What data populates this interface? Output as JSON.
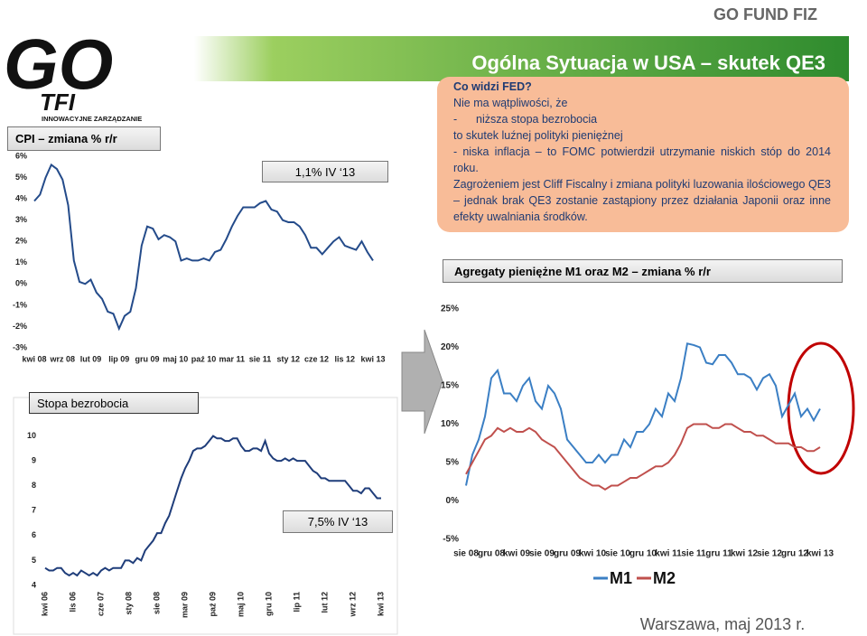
{
  "header": {
    "brand": "GO FUND FIZ",
    "title": "Ogólna Sytuacja w USA – skutek QE3"
  },
  "logo": {
    "brand": "GO",
    "sub": "TFI",
    "tagline": "INNOWACYJNE ZARZĄDZANIE"
  },
  "callout": {
    "heading": "Co widzi FED?",
    "lines": [
      "Nie ma wątpliwości, że",
      "-      niższa stopa bezrobocia",
      "to skutek luźnej polityki pieniężnej",
      "- niska inflacja – to FOMC potwierdził utrzymanie niskich stóp do 2014 roku.",
      "Zagrożeniem jest Cliff Fiscalny i zmiana polityki luzowania ilościowego QE3 – jednak brak QE3 zostanie zastąpiony przez działania Japonii oraz inne efekty uwalniania środków."
    ]
  },
  "footer": "Warszawa, maj 2013 r.",
  "chart_data": [
    {
      "type": "line",
      "title": "CPI – zmiana % r/r",
      "annotation": "1,1%  IV ‘13",
      "color": "#244b8a",
      "categories": [
        "kwi 08",
        null,
        null,
        null,
        null,
        "wrz 08",
        null,
        null,
        null,
        null,
        "lut 09",
        null,
        null,
        null,
        null,
        "lip 09",
        null,
        null,
        null,
        null,
        "gru 09",
        null,
        null,
        null,
        null,
        "maj 10",
        null,
        null,
        null,
        null,
        "paź 10",
        null,
        null,
        null,
        null,
        "mar 11",
        null,
        null,
        null,
        null,
        "sie 11",
        null,
        null,
        null,
        null,
        "sty 12",
        null,
        null,
        null,
        null,
        "cze 12",
        null,
        null,
        null,
        null,
        "lis 12",
        null,
        null,
        null,
        null,
        "kwi 13"
      ],
      "values": [
        3.9,
        4.2,
        5.0,
        5.6,
        5.4,
        4.9,
        3.7,
        1.1,
        0.1,
        0.0,
        0.2,
        -0.4,
        -0.7,
        -1.3,
        -1.4,
        -2.1,
        -1.5,
        -1.3,
        -0.2,
        1.8,
        2.7,
        2.6,
        2.1,
        2.3,
        2.2,
        2.0,
        1.1,
        1.2,
        1.1,
        1.1,
        1.2,
        1.1,
        1.5,
        1.6,
        2.1,
        2.7,
        3.2,
        3.6,
        3.6,
        3.6,
        3.8,
        3.9,
        3.5,
        3.4,
        3.0,
        2.9,
        2.9,
        2.7,
        2.3,
        1.7,
        1.7,
        1.4,
        1.7,
        2.0,
        2.2,
        1.8,
        1.7,
        1.6,
        2.0,
        1.5,
        1.1
      ],
      "ylim": [
        -3,
        6
      ],
      "yticks": [
        {
          "value": -3,
          "label": "-3%"
        },
        {
          "value": -2,
          "label": "-2%"
        },
        {
          "value": -1,
          "label": "-1%"
        },
        {
          "value": 0,
          "label": "0%"
        },
        {
          "value": 1,
          "label": "1%"
        },
        {
          "value": 2,
          "label": "2%"
        },
        {
          "value": 3,
          "label": "3%"
        },
        {
          "value": 4,
          "label": "4%"
        },
        {
          "value": 5,
          "label": "5%"
        },
        {
          "value": 6,
          "label": "6%"
        }
      ],
      "grid": false
    },
    {
      "type": "line",
      "title": "Agregaty pieniężne M1 oraz M2 – zmiana % r/r",
      "categories": [
        "sie 08",
        null,
        null,
        null,
        "gru 08",
        null,
        null,
        null,
        "kwi 09",
        null,
        null,
        null,
        "sie 09",
        null,
        null,
        null,
        "gru 09",
        null,
        null,
        null,
        "kwi 10",
        null,
        null,
        null,
        "sie 10",
        null,
        null,
        null,
        "gru 10",
        null,
        null,
        null,
        "kwi 11",
        null,
        null,
        null,
        "sie 11",
        null,
        null,
        null,
        "gru 11",
        null,
        null,
        null,
        "kwi 12",
        null,
        null,
        null,
        "sie 12",
        null,
        null,
        null,
        "gru 12",
        null,
        null,
        null,
        "kwi 13"
      ],
      "series": [
        {
          "name": "M1",
          "color": "#3b7fc4",
          "values": [
            2,
            6,
            8,
            11,
            16,
            17,
            14,
            14,
            13,
            15,
            16,
            13,
            12,
            15,
            14,
            12,
            8,
            7,
            6,
            5,
            5,
            6,
            5,
            6,
            6,
            8,
            7,
            9,
            9,
            10,
            12,
            11,
            14,
            13,
            16,
            20.5,
            20.3,
            20,
            18,
            17.8,
            19,
            19,
            18,
            16.5,
            16.5,
            16,
            14.5,
            16,
            16.5,
            15,
            11,
            12.5,
            14,
            11,
            12,
            10.5,
            12
          ]
        },
        {
          "name": "M2",
          "color": "#c0504d",
          "values": [
            3.5,
            5,
            6.5,
            8,
            8.5,
            9.5,
            9,
            9.5,
            9,
            9,
            9.5,
            9,
            8,
            7.5,
            7,
            6,
            5,
            4,
            3,
            2.5,
            2,
            2,
            1.5,
            2,
            2,
            2.5,
            3,
            3,
            3.5,
            4,
            4.5,
            4.5,
            5,
            6,
            7.5,
            9.5,
            10,
            10,
            10,
            9.5,
            9.5,
            10,
            10,
            9.5,
            9,
            9,
            8.5,
            8.5,
            8,
            7.5,
            7.5,
            7.5,
            7,
            7,
            6.5,
            6.5,
            7
          ]
        }
      ],
      "ylim": [
        -5,
        25
      ],
      "yticks": [
        {
          "value": -5,
          "label": "-5%"
        },
        {
          "value": 0,
          "label": "0%"
        },
        {
          "value": 5,
          "label": "5%"
        },
        {
          "value": 10,
          "label": "10%"
        },
        {
          "value": 15,
          "label": "15%"
        },
        {
          "value": 20,
          "label": "20%"
        },
        {
          "value": 25,
          "label": "25%"
        }
      ],
      "grid": false,
      "legend": "bottom"
    },
    {
      "type": "line",
      "title": "Stopa bezrobocia",
      "annotation": "7,5%  IV ‘13",
      "color": "#1f3d7a",
      "categories": [
        "kwi 06",
        null,
        null,
        null,
        null,
        null,
        null,
        "lis 06",
        null,
        null,
        null,
        null,
        null,
        null,
        "cze 07",
        null,
        null,
        null,
        null,
        null,
        null,
        "sty 08",
        null,
        null,
        null,
        null,
        null,
        null,
        "sie 08",
        null,
        null,
        null,
        null,
        null,
        null,
        "mar 09",
        null,
        null,
        null,
        null,
        null,
        null,
        "paź 09",
        null,
        null,
        null,
        null,
        null,
        null,
        "maj 10",
        null,
        null,
        null,
        null,
        null,
        null,
        "gru 10",
        null,
        null,
        null,
        null,
        null,
        null,
        "lip 11",
        null,
        null,
        null,
        null,
        null,
        null,
        "lut 12",
        null,
        null,
        null,
        null,
        null,
        null,
        "wrz 12",
        null,
        null,
        null,
        null,
        null,
        null,
        "kwi 13"
      ],
      "values": [
        4.7,
        4.6,
        4.6,
        4.7,
        4.7,
        4.5,
        4.4,
        4.5,
        4.4,
        4.6,
        4.5,
        4.4,
        4.5,
        4.4,
        4.6,
        4.7,
        4.6,
        4.7,
        4.7,
        4.7,
        5.0,
        5.0,
        4.9,
        5.1,
        5.0,
        5.4,
        5.6,
        5.8,
        6.1,
        6.1,
        6.5,
        6.8,
        7.3,
        7.8,
        8.3,
        8.7,
        9.0,
        9.4,
        9.5,
        9.5,
        9.6,
        9.8,
        10.0,
        9.9,
        9.9,
        9.8,
        9.8,
        9.9,
        9.9,
        9.6,
        9.4,
        9.4,
        9.5,
        9.5,
        9.4,
        9.8,
        9.3,
        9.1,
        9.0,
        9.0,
        9.1,
        9.0,
        9.1,
        9.0,
        9.0,
        9.0,
        8.8,
        8.6,
        8.5,
        8.3,
        8.3,
        8.2,
        8.2,
        8.2,
        8.2,
        8.2,
        8.0,
        7.8,
        7.8,
        7.7,
        7.9,
        7.9,
        7.7,
        7.5,
        7.5
      ],
      "ylim": [
        4,
        11
      ],
      "yticks": [
        4,
        5,
        6,
        7,
        8,
        9,
        10
      ],
      "grid": false
    }
  ]
}
